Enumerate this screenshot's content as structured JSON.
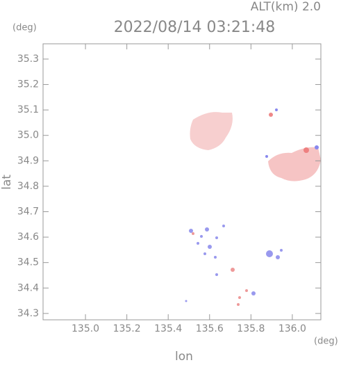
{
  "chart_data": {
    "type": "radar-map",
    "title": "2022/08/14 03:21:48",
    "altitude_label": "ALT(km) 2.0",
    "y_unit": "(deg)",
    "x_unit": "(deg)",
    "x_label": "lon",
    "y_label": "lat",
    "xlim": [
      134.795,
      136.138
    ],
    "ylim": [
      34.275,
      35.36
    ],
    "xticks": [
      {
        "value": 135.0,
        "label": "135.0"
      },
      135.2,
      135.4,
      135.6,
      135.8,
      {
        "value": 136.0,
        "label": "136.0"
      }
    ],
    "yticks": [
      34.3,
      34.4,
      34.5,
      34.6,
      34.7,
      34.8,
      34.9,
      {
        "value": 35.0,
        "label": "35.0"
      },
      35.1,
      35.2,
      35.3
    ]
  }
}
